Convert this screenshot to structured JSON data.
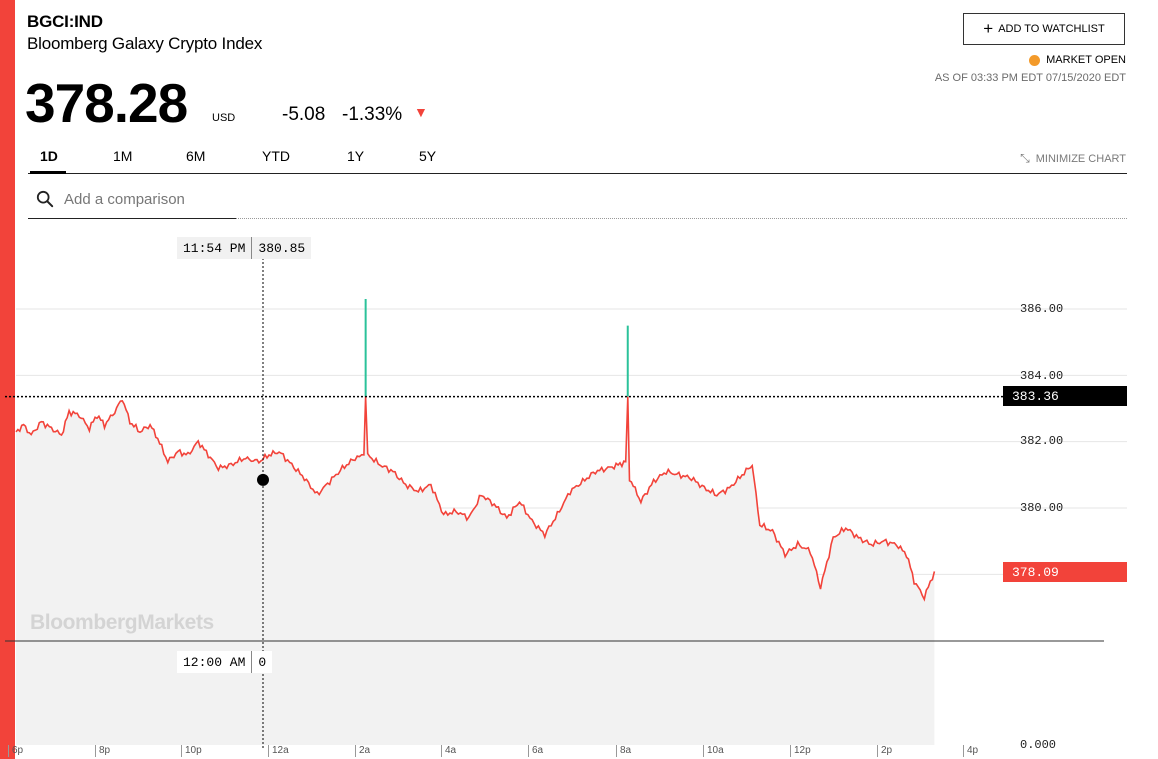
{
  "header": {
    "ticker": "BGCI:IND",
    "name": "Bloomberg Galaxy Crypto Index",
    "price": "378.28",
    "currency": "USD",
    "change": "-5.08",
    "change_pct": "-1.33%",
    "direction_icon": "down-triangle-icon"
  },
  "actions": {
    "watchlist_label": "ADD TO WATCHLIST",
    "market_status": "MARKET OPEN",
    "as_of": "AS OF 03:33 PM EDT 07/15/2020 EDT",
    "minimize_label": "MINIMIZE CHART"
  },
  "tabs": [
    {
      "label": "1D",
      "active": true
    },
    {
      "label": "1M",
      "active": false
    },
    {
      "label": "6M",
      "active": false
    },
    {
      "label": "YTD",
      "active": false
    },
    {
      "label": "1Y",
      "active": false
    },
    {
      "label": "5Y",
      "active": false
    }
  ],
  "search": {
    "placeholder": "Add a comparison"
  },
  "chart": {
    "watermark": "BloombergMarkets",
    "crosshair_value": "383.36",
    "last_value": "378.09",
    "tooltip_price": {
      "time": "11:54 PM",
      "value": "380.85"
    },
    "tooltip_volume": {
      "time": "12:00 AM",
      "value": "0"
    },
    "colors": {
      "line": "#f2433a",
      "up": "#2bc29a",
      "area": "#f2f2f2",
      "last": "#f2433a"
    }
  },
  "chart_data": {
    "type": "line",
    "y_tick_labels": [
      "386.00",
      "384.00",
      "382.00",
      "380.00",
      "0.000"
    ],
    "y_ticks": [
      386,
      384,
      382,
      380
    ],
    "ylim": [
      376.5,
      387
    ],
    "volume_tick": "0.000",
    "x_tick_labels": [
      "6p",
      "8p",
      "10p",
      "12a",
      "2a",
      "4a",
      "6a",
      "8a",
      "10a",
      "12p",
      "2p",
      "4p"
    ],
    "series": [
      {
        "values": [
          [
            0,
            382.3
          ],
          [
            0.3,
            382.5
          ],
          [
            0.6,
            382.2
          ],
          [
            1.0,
            382.6
          ],
          [
            1.4,
            382.4
          ],
          [
            1.8,
            382.2
          ],
          [
            2.1,
            382.9
          ],
          [
            2.5,
            382.8
          ],
          [
            2.9,
            382.4
          ],
          [
            3.2,
            382.8
          ],
          [
            3.5,
            382.5
          ],
          [
            3.9,
            382.9
          ],
          [
            4.2,
            383.3
          ],
          [
            4.5,
            382.6
          ],
          [
            4.9,
            382.3
          ],
          [
            5.3,
            382.5
          ],
          [
            5.6,
            382.1
          ],
          [
            6.0,
            381.4
          ],
          [
            6.4,
            381.7
          ],
          [
            6.8,
            381.6
          ],
          [
            7.2,
            382.0
          ],
          [
            7.6,
            381.6
          ],
          [
            8.0,
            381.2
          ],
          [
            8.5,
            381.3
          ],
          [
            9.0,
            381.5
          ],
          [
            9.6,
            381.4
          ],
          [
            10.0,
            381.6
          ],
          [
            10.4,
            381.7
          ],
          [
            10.9,
            381.3
          ],
          [
            11.4,
            380.9
          ],
          [
            11.9,
            380.4
          ],
          [
            12.4,
            380.8
          ],
          [
            12.9,
            381.2
          ],
          [
            13.4,
            381.5
          ],
          [
            13.75,
            381.6
          ],
          [
            13.82,
            383.36
          ],
          [
            13.9,
            381.6
          ],
          [
            14.4,
            381.3
          ],
          [
            14.9,
            381.1
          ],
          [
            15.4,
            380.7
          ],
          [
            15.9,
            380.5
          ],
          [
            16.4,
            380.7
          ],
          [
            16.9,
            379.8
          ],
          [
            17.4,
            379.9
          ],
          [
            17.9,
            379.7
          ],
          [
            18.4,
            380.4
          ],
          [
            18.9,
            380.1
          ],
          [
            19.4,
            379.7
          ],
          [
            19.9,
            380.2
          ],
          [
            20.4,
            379.6
          ],
          [
            20.9,
            379.2
          ],
          [
            21.4,
            379.8
          ],
          [
            21.9,
            380.5
          ],
          [
            22.4,
            380.8
          ],
          [
            22.9,
            381.1
          ],
          [
            23.4,
            381.2
          ],
          [
            23.8,
            381.3
          ],
          [
            24.1,
            381.4
          ],
          [
            24.18,
            383.36
          ],
          [
            24.25,
            380.9
          ],
          [
            24.7,
            380.2
          ],
          [
            25.2,
            380.8
          ],
          [
            25.7,
            381.1
          ],
          [
            26.2,
            381.0
          ],
          [
            26.7,
            380.9
          ],
          [
            27.2,
            380.6
          ],
          [
            27.7,
            380.4
          ],
          [
            28.2,
            380.6
          ],
          [
            28.7,
            381.0
          ],
          [
            29.1,
            381.3
          ],
          [
            29.4,
            379.5
          ],
          [
            29.9,
            379.3
          ],
          [
            30.4,
            378.6
          ],
          [
            30.9,
            378.9
          ],
          [
            31.4,
            378.7
          ],
          [
            31.8,
            377.6
          ],
          [
            32.3,
            379.1
          ],
          [
            32.8,
            379.4
          ],
          [
            33.3,
            379.1
          ],
          [
            33.8,
            378.9
          ],
          [
            34.3,
            379.0
          ],
          [
            34.8,
            378.9
          ],
          [
            35.2,
            378.6
          ],
          [
            35.5,
            377.8
          ],
          [
            35.9,
            377.3
          ],
          [
            36.3,
            378.09
          ]
        ]
      }
    ],
    "spikes": [
      {
        "x": 13.82,
        "from": 383.36,
        "to": 386.3
      },
      {
        "x": 24.18,
        "from": 383.36,
        "to": 385.5
      }
    ]
  }
}
